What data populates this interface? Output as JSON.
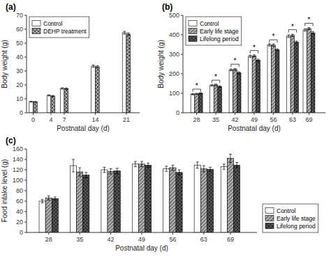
{
  "chart_data": [
    {
      "type": "bar",
      "title": "(a)",
      "xlabel": "Postnatal day (d)",
      "ylabel": "Body weight (g)",
      "x": [
        0,
        4,
        7,
        14,
        21
      ],
      "xlim": [
        -1.5,
        24
      ],
      "xticks": [
        0,
        4,
        7,
        14,
        21
      ],
      "ylim": [
        0,
        70
      ],
      "yticks": [
        0,
        10,
        20,
        30,
        40,
        50,
        60,
        70
      ],
      "grid": false,
      "legend": "upper left",
      "series": [
        {
          "name": "Control",
          "color": "#ffffff",
          "values": [
            8.0,
            12.5,
            17.5,
            33.5,
            57.5
          ],
          "errors": [
            0.3,
            0.4,
            0.5,
            0.8,
            1.0
          ]
        },
        {
          "name": "DEHP treatment",
          "color": "#aaaaaa",
          "values": [
            7.8,
            12.0,
            17.3,
            33.0,
            56.5
          ],
          "errors": [
            0.3,
            0.4,
            0.5,
            0.7,
            0.9
          ]
        }
      ]
    },
    {
      "type": "bar",
      "title": "(b)",
      "xlabel": "Postnatal day (d)",
      "ylabel": "Body weight (g)",
      "x": [
        28,
        35,
        42,
        49,
        56,
        63,
        69
      ],
      "xlim": [
        23,
        75
      ],
      "xticks": [
        28,
        35,
        42,
        49,
        56,
        63,
        69
      ],
      "ylim": [
        0,
        500
      ],
      "yticks": [
        0,
        100,
        200,
        300,
        400,
        500
      ],
      "grid": false,
      "legend": "upper left",
      "series": [
        {
          "name": "Control",
          "color": "#ffffff",
          "values": [
            95,
            140,
            220,
            290,
            348,
            393,
            425
          ],
          "errors": [
            3,
            4,
            5,
            6,
            6,
            7,
            6
          ]
        },
        {
          "name": "Early life stage",
          "color": "#aaaaaa",
          "values": [
            97,
            143,
            222,
            292,
            347,
            397,
            432
          ],
          "errors": [
            3,
            4,
            5,
            5,
            6,
            6,
            5
          ]
        },
        {
          "name": "Lifelong period",
          "color": "#555555",
          "values": [
            100,
            134,
            205,
            270,
            323,
            362,
            410
          ],
          "errors": [
            3,
            4,
            5,
            5,
            5,
            6,
            6
          ]
        }
      ],
      "annotations": [
        {
          "text": "*",
          "x": 28,
          "y": 107
        },
        {
          "text": "*",
          "x": 35,
          "y": 153
        },
        {
          "text": "*",
          "x": 42,
          "y": 235
        },
        {
          "text": "*",
          "x": 49,
          "y": 305
        },
        {
          "text": "*",
          "x": 56,
          "y": 360
        },
        {
          "text": "*",
          "x": 63,
          "y": 412
        },
        {
          "text": "*",
          "x": 69,
          "y": 445
        }
      ]
    },
    {
      "type": "bar",
      "title": "(c)",
      "xlabel": "Postnatal day (d)",
      "ylabel": "Food intake level (g)",
      "x": [
        28,
        35,
        42,
        49,
        56,
        63,
        69
      ],
      "xlim": [
        23,
        75
      ],
      "xticks": [
        28,
        35,
        42,
        49,
        56,
        63,
        69
      ],
      "ylim": [
        0,
        160
      ],
      "yticks": [
        0,
        20,
        40,
        60,
        80,
        100,
        120,
        140,
        160
      ],
      "grid": false,
      "legend": "lower right",
      "series": [
        {
          "name": "Control",
          "color": "#ffffff",
          "values": [
            60,
            128,
            120,
            131,
            122,
            129,
            126
          ],
          "errors": [
            3,
            12,
            5,
            5,
            5,
            6,
            5
          ]
        },
        {
          "name": "Early life stage",
          "color": "#aaaaaa",
          "values": [
            66,
            116,
            117,
            131,
            124,
            122,
            142
          ],
          "errors": [
            4,
            8,
            5,
            5,
            5,
            6,
            8
          ]
        },
        {
          "name": "Lifelong period",
          "color": "#555555",
          "values": [
            65,
            110,
            118,
            129,
            115,
            121,
            129
          ],
          "errors": [
            3,
            5,
            5,
            4,
            5,
            4,
            5
          ]
        }
      ]
    }
  ]
}
